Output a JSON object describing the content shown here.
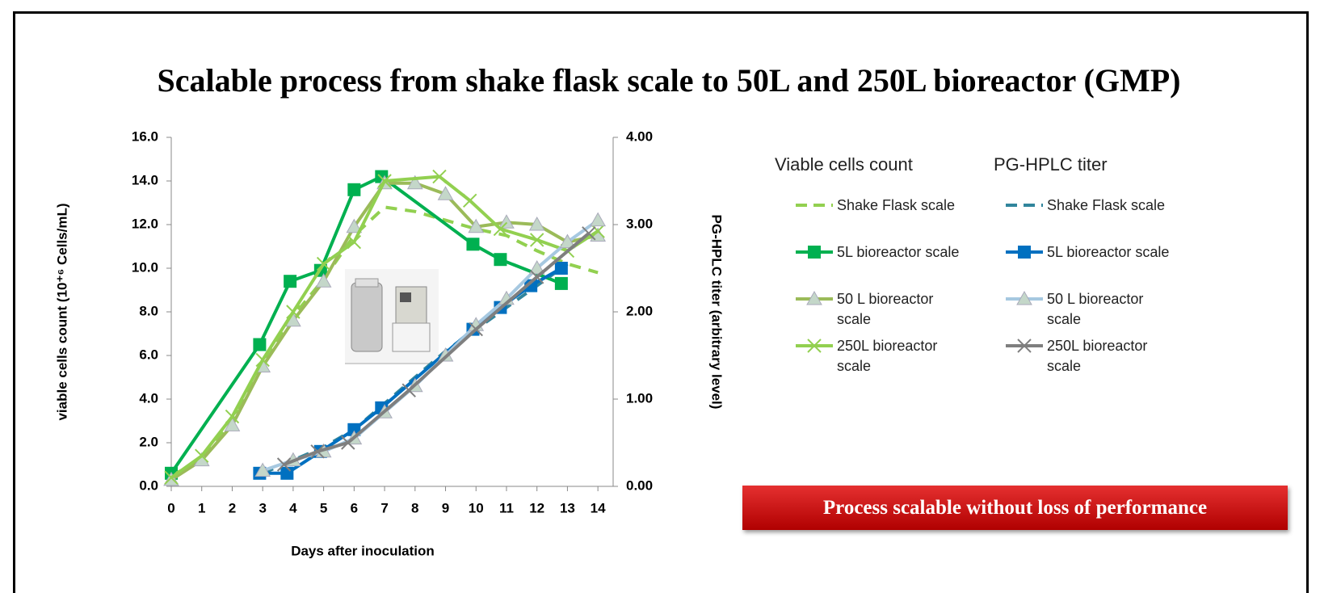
{
  "chart_data": {
    "type": "line",
    "title": "Scalable  process from shake flask  scale to 50L and 250L  bioreactor (GMP)",
    "x_label": "Days after inoculation",
    "y_label": "viable cells count (10⁺⁶ Cells/mL)",
    "y2_label": "PG-HPLC titer (arbitrary level)",
    "legend_titles": [
      "Viable cells count",
      "PG-HPLC titer"
    ],
    "xlim": [
      0,
      14.5
    ],
    "xticks": [
      0,
      1,
      2,
      3,
      4,
      5,
      6,
      7,
      8,
      9,
      10,
      11,
      12,
      13,
      14
    ],
    "ylim": [
      0,
      16
    ],
    "yticks": [
      {
        "value": 0,
        "label": "0.0"
      },
      {
        "value": 2,
        "label": "2.0"
      },
      {
        "value": 4,
        "label": "4.0"
      },
      {
        "value": 6,
        "label": "6.0"
      },
      {
        "value": 8,
        "label": "8.0"
      },
      {
        "value": 10,
        "label": "10.0"
      },
      {
        "value": 12,
        "label": "12.0"
      },
      {
        "value": 14,
        "label": "14.0"
      },
      {
        "value": 16,
        "label": "16.0"
      }
    ],
    "y2lim": [
      0,
      4
    ],
    "y2ticks": [
      {
        "value": 0,
        "label": "0.00"
      },
      {
        "value": 1,
        "label": "1.00"
      },
      {
        "value": 2,
        "label": "2.00"
      },
      {
        "value": 3,
        "label": "3.00"
      },
      {
        "value": 4,
        "label": "4.00"
      }
    ],
    "series": [
      {
        "name": "Shake Flask scale",
        "color": "#92d050",
        "dashed": true,
        "marker": null,
        "x": [
          0,
          1,
          2,
          3,
          4,
          5,
          6,
          7,
          8,
          9,
          10,
          11,
          12,
          13,
          14
        ],
        "values": [
          0.5,
          1.2,
          3.0,
          5.5,
          7.8,
          9.5,
          11.5,
          12.8,
          12.6,
          12.2,
          11.8,
          11.5,
          10.8,
          10.2,
          9.8
        ]
      },
      {
        "name": "5L bioreactor scale",
        "color": "#00b050",
        "dashed": false,
        "marker": "square",
        "x": [
          0,
          2.9,
          3.9,
          4.9,
          6,
          6.9,
          9.9,
          10.8,
          12.8
        ],
        "values": [
          0.6,
          6.5,
          9.4,
          9.9,
          13.6,
          14.2,
          11.1,
          10.4,
          9.3
        ]
      },
      {
        "name": "50 L bioreactor scale",
        "color": "#9bbb59",
        "dashed": false,
        "marker": "triangle",
        "x": [
          0,
          1,
          2,
          3,
          4,
          5,
          6,
          7,
          8,
          9,
          10,
          11,
          12,
          13,
          14
        ],
        "values": [
          0.3,
          1.2,
          2.8,
          5.5,
          7.6,
          9.4,
          11.9,
          13.9,
          13.9,
          13.4,
          11.9,
          12.1,
          12.0,
          11.2,
          11.5
        ]
      },
      {
        "name": "250L bioreactor scale",
        "color": "#92d050",
        "dashed": false,
        "marker": "x",
        "x": [
          0,
          1,
          2,
          3,
          4,
          5,
          6,
          7,
          8.8,
          9.8,
          10.8,
          12,
          13,
          14
        ],
        "values": [
          0.4,
          1.4,
          3.2,
          5.8,
          8.0,
          10.2,
          11.2,
          14.0,
          14.2,
          13.1,
          11.8,
          11.3,
          10.8,
          11.7
        ]
      },
      {
        "name": "Shake Flask scale",
        "color": "#31859c",
        "dashed": true,
        "marker": null,
        "axis": "y2",
        "x": [
          3,
          4,
          5,
          6,
          7,
          8,
          9,
          10,
          11,
          12,
          13
        ],
        "values": [
          0.15,
          0.3,
          0.45,
          0.65,
          0.95,
          1.25,
          1.55,
          1.8,
          2.05,
          2.3,
          2.55
        ]
      },
      {
        "name": "5L bioreactor scale",
        "color": "#0070c0",
        "dashed": false,
        "marker": "square",
        "axis": "y2",
        "x": [
          2.9,
          3.8,
          4.9,
          6,
          6.9,
          9.9,
          10.8,
          11.8,
          12.8
        ],
        "values": [
          0.15,
          0.15,
          0.4,
          0.65,
          0.9,
          1.8,
          2.05,
          2.3,
          2.5
        ]
      },
      {
        "name": "50 L bioreactor scale",
        "color": "#a6c8e0",
        "dashed": false,
        "marker": "triangle",
        "axis": "y2",
        "x": [
          3,
          4,
          5,
          6,
          7,
          8,
          9,
          10,
          11,
          12,
          13,
          14
        ],
        "values": [
          0.18,
          0.3,
          0.4,
          0.55,
          0.85,
          1.15,
          1.5,
          1.85,
          2.15,
          2.5,
          2.8,
          3.05
        ]
      },
      {
        "name": "250L bioreactor scale",
        "color": "#7f7f7f",
        "dashed": false,
        "marker": "x",
        "axis": "y2",
        "x": [
          3.7,
          4.8,
          5.8,
          7.8,
          10,
          12,
          13.7
        ],
        "values": [
          0.25,
          0.4,
          0.5,
          1.1,
          1.8,
          2.4,
          2.9
        ]
      }
    ]
  },
  "callout": "Process scalable without loss of performance"
}
